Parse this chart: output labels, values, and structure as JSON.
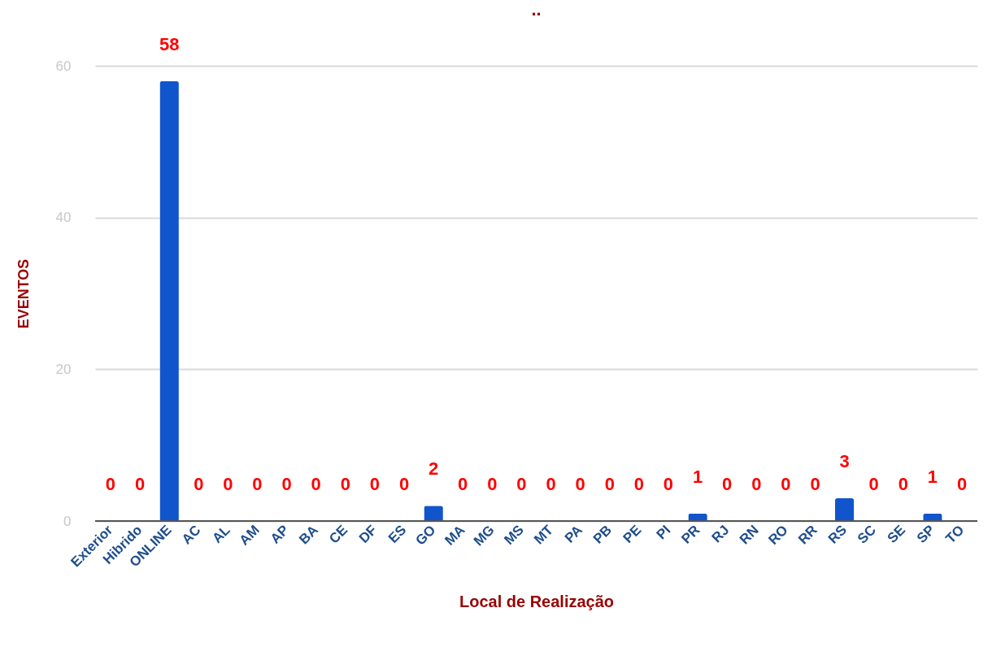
{
  "chart_data": {
    "type": "bar",
    "title": "..",
    "xlabel": "Local de Realização",
    "ylabel": "EVENTOS",
    "categories": [
      "Exterior",
      "Hibrido",
      "ONLINE",
      "AC",
      "AL",
      "AM",
      "AP",
      "BA",
      "CE",
      "DF",
      "ES",
      "GO",
      "MA",
      "MG",
      "MS",
      "MT",
      "PA",
      "PB",
      "PE",
      "PI",
      "PR",
      "RJ",
      "RN",
      "RO",
      "RR",
      "RS",
      "SC",
      "SE",
      "SP",
      "TO"
    ],
    "values": [
      0,
      0,
      58,
      0,
      0,
      0,
      0,
      0,
      0,
      0,
      0,
      2,
      0,
      0,
      0,
      0,
      0,
      0,
      0,
      0,
      1,
      0,
      0,
      0,
      0,
      3,
      0,
      0,
      1,
      0
    ],
    "color": "#1155cc",
    "ylim": [
      0,
      60
    ],
    "yticks": [
      0,
      20,
      40,
      60
    ],
    "grid": "y",
    "data_labels": true
  }
}
